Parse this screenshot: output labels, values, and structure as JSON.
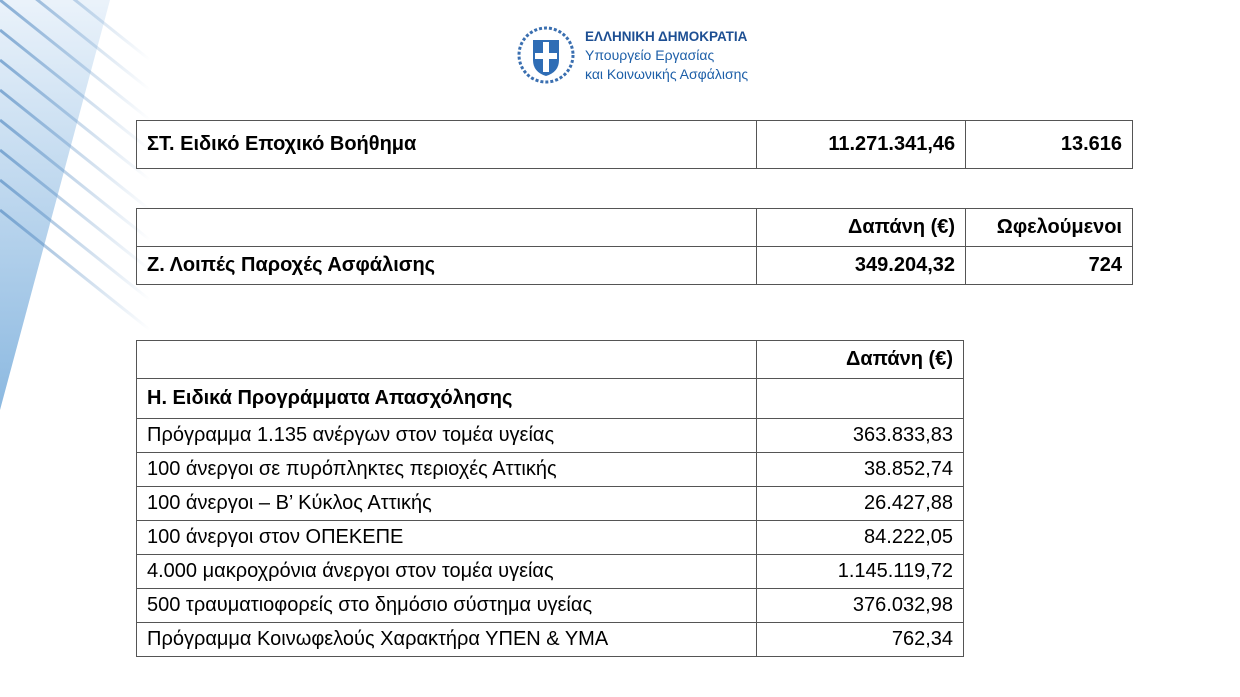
{
  "header": {
    "line1": "ΕΛΛΗΝΙΚΗ ΔΗΜΟΚΡΑΤΙΑ",
    "line2": "Υπουργείο Εργασίας",
    "line3": "και Κοινωνικής Ασφάλισης",
    "emblem_icon": "greek-coat-of-arms",
    "brand_color": "#1d5fa8"
  },
  "table1": {
    "label": "ΣΤ. Ειδικό Εποχικό Βοήθημα",
    "expense": "11.271.341,46",
    "beneficiaries": "13.616"
  },
  "table2": {
    "col_expense": "Δαπάνη (€)",
    "col_beneficiaries": "Ωφελούμενοι",
    "label": "Ζ. Λοιπές Παροχές Ασφάλισης",
    "expense": "349.204,32",
    "beneficiaries": "724"
  },
  "table3": {
    "col_expense": "Δαπάνη (€)",
    "section": "Η. Ειδικά Προγράμματα Απασχόλησης",
    "rows": [
      {
        "label": "Πρόγραμμα 1.135 ανέργων στον τομέα υγείας",
        "value": "363.833,83"
      },
      {
        "label": "100 άνεργοι σε πυρόπληκτες περιοχές Αττικής",
        "value": "38.852,74"
      },
      {
        "label": "100 άνεργοι – Β’ Κύκλος Αττικής",
        "value": "26.427,88"
      },
      {
        "label": "100 άνεργοι στον ΟΠΕΚΕΠΕ",
        "value": "84.222,05"
      },
      {
        "label": "4.000 μακροχρόνια άνεργοι στον τομέα υγείας",
        "value": "1.145.119,72"
      },
      {
        "label": "500 τραυματιοφορείς στο δημόσιο σύστημα υγείας",
        "value": "376.032,98"
      },
      {
        "label": "Πρόγραμμα Κοινωφελούς Χαρακτήρα ΥΠΕΝ & ΥΜΑ",
        "value": "762,34"
      }
    ]
  }
}
